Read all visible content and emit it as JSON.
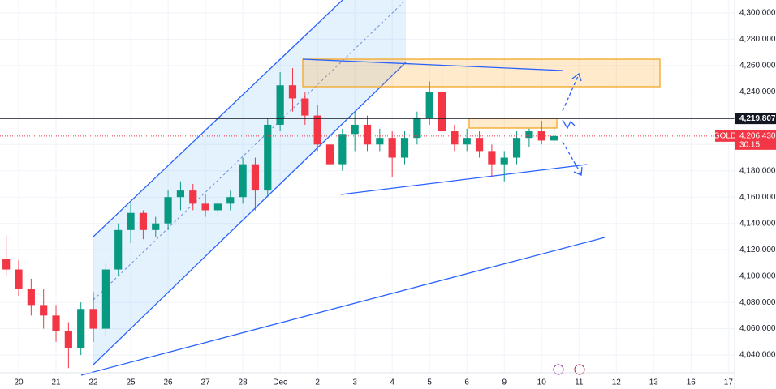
{
  "chart_data": {
    "type": "candlestick",
    "categories": [
      null,
      "20",
      null,
      null,
      "21",
      null,
      null,
      "22",
      null,
      null,
      "25",
      null,
      null,
      "26",
      null,
      null,
      "27",
      null,
      null,
      "28",
      null,
      null,
      "Dec",
      null,
      null,
      "2",
      null,
      null,
      "3",
      null,
      null,
      "4",
      null,
      null,
      "5",
      null,
      null,
      "6",
      null,
      null,
      "9",
      null,
      null,
      "10",
      null,
      null,
      "11",
      null,
      null,
      "12",
      null,
      null,
      "13",
      null,
      null,
      "16",
      null,
      null,
      "17"
    ],
    "open": [
      4113,
      4105,
      4090,
      4078,
      4070,
      4058,
      4045,
      4075,
      4060,
      4105,
      4135,
      4148,
      4135,
      4140,
      4160,
      4165,
      4155,
      4150,
      4155,
      4160,
      4185,
      4165,
      4215,
      4245,
      4235,
      4222,
      4200,
      4185,
      4208,
      4215,
      4200,
      4205,
      4190,
      4205,
      4220,
      4240,
      4210,
      4200,
      4205,
      4195,
      4185,
      4190,
      4205,
      4210,
      4203,
      null,
      null,
      null,
      null,
      null,
      null,
      null,
      null,
      null,
      null,
      null,
      null,
      null,
      null
    ],
    "high": [
      4131,
      4112,
      4098,
      4090,
      4078,
      4065,
      4080,
      4088,
      4110,
      4140,
      4155,
      4150,
      4145,
      4165,
      4172,
      4170,
      4162,
      4158,
      4165,
      4190,
      4190,
      4220,
      4255,
      4258,
      4240,
      4230,
      4205,
      4212,
      4225,
      4222,
      4212,
      4210,
      4210,
      4225,
      4248,
      4260,
      4215,
      4212,
      4210,
      4200,
      4195,
      4210,
      4212,
      4218,
      4215,
      null,
      null,
      null,
      null,
      null,
      null,
      null,
      null,
      null,
      null,
      null,
      null,
      null,
      null
    ],
    "low": [
      4100,
      4085,
      4070,
      4060,
      4050,
      4030,
      4040,
      4050,
      4055,
      4100,
      4125,
      4128,
      4130,
      4135,
      4150,
      4150,
      4145,
      4145,
      4150,
      4155,
      4150,
      4160,
      4210,
      4225,
      4215,
      4195,
      4165,
      4180,
      4195,
      4195,
      4195,
      4175,
      4185,
      4200,
      4215,
      4200,
      4195,
      4195,
      4190,
      4175,
      4172,
      4185,
      4198,
      4200,
      4200,
      null,
      null,
      null,
      null,
      null,
      null,
      null,
      null,
      null,
      null,
      null,
      null,
      null,
      null
    ],
    "close": [
      4105,
      4090,
      4078,
      4070,
      4058,
      4045,
      4075,
      4060,
      4105,
      4135,
      4148,
      4135,
      4140,
      4160,
      4165,
      4155,
      4150,
      4155,
      4160,
      4185,
      4165,
      4215,
      4245,
      4235,
      4222,
      4200,
      4185,
      4208,
      4215,
      4200,
      4205,
      4190,
      4205,
      4220,
      4240,
      4210,
      4200,
      4205,
      4195,
      4185,
      4190,
      4205,
      4210,
      4203,
      4206.43,
      null,
      null,
      null,
      null,
      null,
      null,
      null,
      null,
      null,
      null,
      null,
      null,
      null,
      null
    ],
    "up_color": "#089981",
    "down_color": "#f23645",
    "ylim": [
      4026.5,
      4309.8
    ],
    "yticks": [
      {
        "value": 4040,
        "label": "4,040.000"
      },
      {
        "value": 4060,
        "label": "4,060.000"
      },
      {
        "value": 4080,
        "label": "4,080.000"
      },
      {
        "value": 4100,
        "label": "4,100.000"
      },
      {
        "value": 4120,
        "label": "4,120.000"
      },
      {
        "value": 4140,
        "label": "4,140.000"
      },
      {
        "value": 4160,
        "label": "4,160.000"
      },
      {
        "value": 4180,
        "label": "4,180.000"
      },
      {
        "value": 4200,
        "label": "4,200.000"
      },
      {
        "value": 4220,
        "label": "4,220.000"
      },
      {
        "value": 4240,
        "label": "4,240.000"
      },
      {
        "value": 4260,
        "label": "4,260.000"
      },
      {
        "value": 4280,
        "label": "4,280.000"
      },
      {
        "value": 4300,
        "label": "4,300.000"
      }
    ],
    "grid": true,
    "hline": {
      "value": 4219.807,
      "label": "4,219.807"
    },
    "last_price": {
      "name": "GOLD",
      "value": 4206.43,
      "label": "4,206.430",
      "countdown": "30:15"
    }
  }
}
